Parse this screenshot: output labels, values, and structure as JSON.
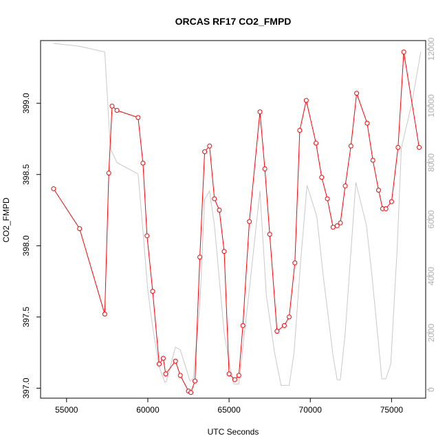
{
  "chart_data": {
    "type": "line",
    "title": "ORCAS RF17 CO2_FMPD",
    "xlabel": "UTC Seconds",
    "ylabel": "CO2_FMPD",
    "xlim": [
      53400,
      77100
    ],
    "ylim": [
      396.93,
      399.44
    ],
    "y2lim": [
      -300,
      12300
    ],
    "x_ticks": [
      55000,
      60000,
      65000,
      70000,
      75000
    ],
    "x_tick_labels": [
      "55000",
      "60000",
      "65000",
      "70000",
      "75000"
    ],
    "y_ticks": [
      397.0,
      397.5,
      398.0,
      398.5,
      399.0
    ],
    "y_tick_labels": [
      "397.0",
      "397.5",
      "398.0",
      "398.5",
      "399.0"
    ],
    "y2_ticks": [
      0,
      2000,
      4000,
      6000,
      8000,
      10000,
      12000
    ],
    "y2_tick_labels": [
      "0",
      "2000",
      "4000",
      "6000",
      "8000",
      "10000",
      "12000"
    ],
    "grid": false,
    "series": [
      {
        "axis": "left",
        "color": "#ff0000",
        "markers": "open-circle",
        "x": [
          54200,
          55800,
          57350,
          57600,
          57800,
          58100,
          59400,
          59700,
          59950,
          60300,
          60700,
          60950,
          61100,
          61700,
          62000,
          62500,
          62650,
          62900,
          63200,
          63500,
          63800,
          64100,
          64400,
          64700,
          65000,
          65350,
          65600,
          65850,
          66250,
          66900,
          67200,
          67500,
          67950,
          68400,
          68700,
          69050,
          69350,
          69750,
          70350,
          70700,
          71050,
          71400,
          71650,
          71850,
          72150,
          72500,
          72850,
          73500,
          73850,
          74200,
          74450,
          74650,
          75000,
          75400,
          75750,
          76700
        ],
        "y": [
          398.4,
          398.12,
          397.52,
          398.51,
          398.98,
          398.95,
          398.9,
          398.58,
          398.07,
          397.68,
          397.17,
          397.21,
          397.1,
          397.19,
          397.09,
          396.98,
          396.97,
          397.05,
          397.92,
          398.66,
          398.7,
          398.33,
          398.25,
          397.96,
          397.1,
          397.06,
          397.09,
          397.44,
          398.17,
          398.94,
          398.54,
          398.08,
          397.4,
          397.44,
          397.5,
          397.88,
          398.81,
          399.02,
          398.72,
          398.48,
          398.33,
          398.13,
          398.14,
          398.16,
          398.42,
          398.7,
          399.07,
          398.86,
          398.6,
          398.39,
          398.26,
          398.26,
          398.31,
          398.69,
          399.36,
          398.69
        ]
      },
      {
        "axis": "right",
        "color": "#c8c8c8",
        "markers": "none",
        "x": [
          54200,
          55800,
          57350,
          57700,
          58100,
          59400,
          59700,
          60000,
          60300,
          60700,
          61050,
          61150,
          61700,
          62000,
          62600,
          62800,
          63200,
          63500,
          63800,
          64100,
          64700,
          65050,
          65300,
          65600,
          66300,
          66900,
          67300,
          67800,
          68200,
          68400,
          68700,
          69000,
          69400,
          69800,
          70400,
          70800,
          71400,
          71650,
          71850,
          72150,
          72800,
          73450,
          73800,
          74200,
          74400,
          74650,
          74950,
          75350,
          75600,
          76250,
          76800
        ],
        "y": [
          12200,
          12100,
          11900,
          8500,
          8000,
          7600,
          5600,
          3500,
          2200,
          800,
          250,
          300,
          1500,
          1400,
          300,
          400,
          3000,
          6700,
          7000,
          5800,
          2000,
          800,
          200,
          200,
          3800,
          7000,
          3300,
          1300,
          150,
          150,
          150,
          1300,
          4500,
          7200,
          6100,
          4000,
          1200,
          350,
          350,
          2000,
          7300,
          5800,
          4000,
          1600,
          380,
          380,
          900,
          5000,
          8500,
          10100,
          11900
        ]
      }
    ]
  }
}
